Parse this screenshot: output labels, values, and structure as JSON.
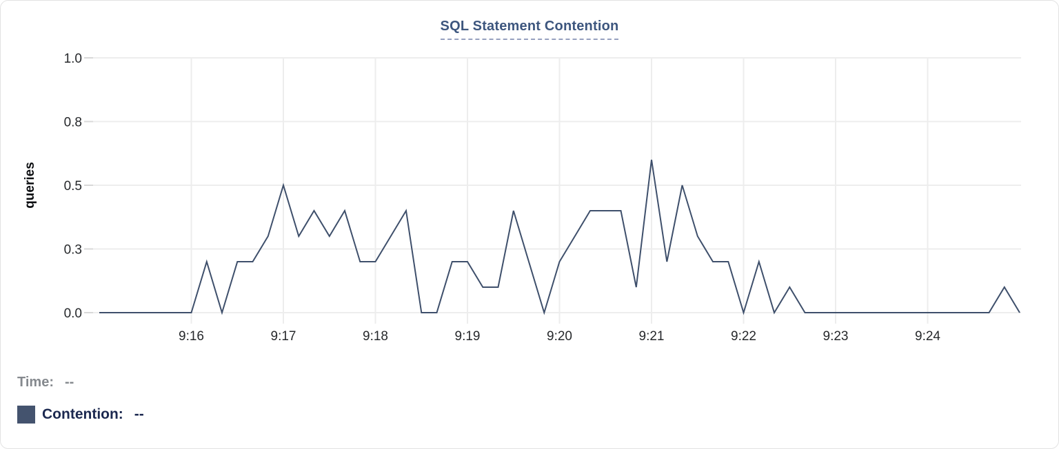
{
  "panel": {
    "title": "SQL Statement Contention"
  },
  "colors": {
    "title": "#3d567e",
    "title_underline": "#96a0bf",
    "line": "#3e4f6b",
    "swatch": "#44536e",
    "gridline": "#ededed",
    "tick": "#d8d8d8",
    "time_legend_text": "#85898e",
    "contention_legend_text": "#1c2950"
  },
  "legend": {
    "time_label": "Time:",
    "time_value": "--",
    "contention_label": "Contention:",
    "contention_value": "--"
  },
  "chart_data": {
    "type": "line",
    "title": "SQL Statement Contention",
    "xlabel": "",
    "ylabel": "queries",
    "ylim": [
      0,
      1.0
    ],
    "grid": true,
    "legend_position": "bottom-left",
    "y_ticks": [
      {
        "value": 1.0,
        "label": "1.0"
      },
      {
        "value": 0.75,
        "label": "0.8"
      },
      {
        "value": 0.5,
        "label": "0.5"
      },
      {
        "value": 0.25,
        "label": "0.3"
      },
      {
        "value": 0.0,
        "label": "0.0"
      }
    ],
    "x_ticks": [
      "9:16",
      "9:17",
      "9:18",
      "9:19",
      "9:20",
      "9:21",
      "9:22",
      "9:23",
      "9:24"
    ],
    "x_range": [
      "9:15:00",
      "9:25:00"
    ],
    "series": [
      {
        "name": "Contention",
        "color": "#3e4f6b",
        "x": [
          "9:15:00",
          "9:15:10",
          "9:15:20",
          "9:15:30",
          "9:15:40",
          "9:15:50",
          "9:16:00",
          "9:16:10",
          "9:16:20",
          "9:16:30",
          "9:16:40",
          "9:16:50",
          "9:17:00",
          "9:17:10",
          "9:17:20",
          "9:17:30",
          "9:17:40",
          "9:17:50",
          "9:18:00",
          "9:18:10",
          "9:18:20",
          "9:18:30",
          "9:18:40",
          "9:18:50",
          "9:19:00",
          "9:19:10",
          "9:19:20",
          "9:19:30",
          "9:19:40",
          "9:19:50",
          "9:20:00",
          "9:20:10",
          "9:20:20",
          "9:20:30",
          "9:20:40",
          "9:20:50",
          "9:21:00",
          "9:21:10",
          "9:21:20",
          "9:21:30",
          "9:21:40",
          "9:21:50",
          "9:22:00",
          "9:22:10",
          "9:22:20",
          "9:22:30",
          "9:22:40",
          "9:22:50",
          "9:23:00",
          "9:23:10",
          "9:23:20",
          "9:23:30",
          "9:23:40",
          "9:23:50",
          "9:24:00",
          "9:24:10",
          "9:24:20",
          "9:24:30",
          "9:24:40",
          "9:24:50",
          "9:25:00"
        ],
        "values": [
          0,
          0,
          0,
          0,
          0,
          0,
          0,
          0.2,
          0,
          0.2,
          0.2,
          0.3,
          0.5,
          0.3,
          0.4,
          0.3,
          0.4,
          0.2,
          0.2,
          0.3,
          0.4,
          0,
          0,
          0.2,
          0.2,
          0.1,
          0.1,
          0.4,
          0.2,
          0,
          0.2,
          0.3,
          0.4,
          0.4,
          0.4,
          0.1,
          0.6,
          0.2,
          0.5,
          0.3,
          0.2,
          0.2,
          0,
          0.2,
          0,
          0.1,
          0,
          0,
          0,
          0,
          0,
          0,
          0,
          0,
          0,
          0,
          0,
          0,
          0,
          0.1,
          0
        ]
      }
    ]
  }
}
